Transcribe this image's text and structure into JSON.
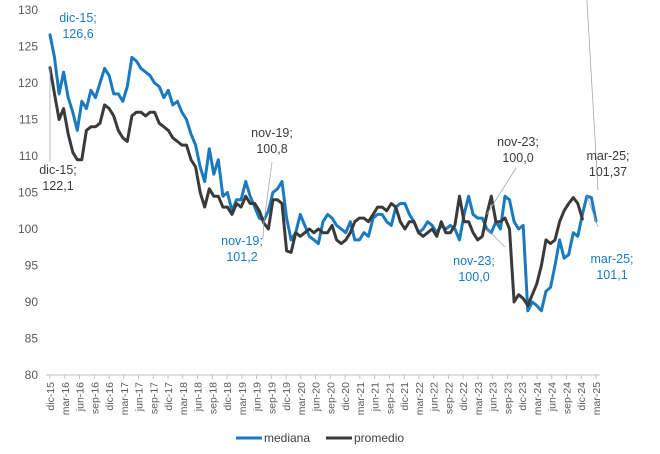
{
  "chart_data": {
    "type": "line",
    "title": "",
    "xlabel": "",
    "ylabel": "",
    "ylim": [
      80,
      130
    ],
    "yticks": [
      "80",
      "85",
      "90",
      "95",
      "100",
      "105",
      "110",
      "115",
      "120",
      "125",
      "130"
    ],
    "grid": false,
    "legend_position": "bottom",
    "x_tick_labels": [
      "dic-15",
      "mar-16",
      "jun-16",
      "sep-16",
      "dic-16",
      "mar-17",
      "jun-17",
      "sep-17",
      "dic-17",
      "mar-18",
      "jun-18",
      "sep-18",
      "dic-18",
      "mar-19",
      "jun-19",
      "sep-19",
      "dic-19",
      "mar-20",
      "jun-20",
      "sep-20",
      "dic-20",
      "mar-21",
      "jun-21",
      "sep-21",
      "dic-21",
      "mar-22",
      "jun-22",
      "sep-22",
      "dic-22",
      "mar-23",
      "jun-23",
      "sep-23",
      "dic-23",
      "mar-24",
      "jun-24",
      "sep-24",
      "dic-24",
      "mar-25"
    ],
    "series": [
      {
        "name": "mediana",
        "color": "#1a7abf",
        "values": [
          126.6,
          123.5,
          118.5,
          121.5,
          118,
          116,
          113.5,
          117.5,
          116.5,
          119,
          118,
          120,
          122,
          121,
          118.5,
          118.5,
          117.5,
          119.5,
          123.5,
          123,
          122,
          121.5,
          121,
          120,
          119.5,
          118,
          119,
          117,
          117.5,
          116,
          115,
          113,
          111.5,
          108.5,
          106.5,
          111,
          107.5,
          109.5,
          104.5,
          105,
          102.5,
          104,
          104,
          106.5,
          104.5,
          103,
          101.5,
          101.2,
          102.5,
          105,
          105.5,
          106.5,
          101.5,
          98.5,
          99.5,
          102,
          100.5,
          99,
          98.5,
          98,
          101,
          102,
          101.5,
          100.5,
          100,
          99.5,
          101,
          98.5,
          98.5,
          99.5,
          99,
          101.5,
          102,
          102,
          101,
          100.5,
          103,
          103.5,
          103.5,
          102,
          101,
          99.5,
          100,
          101,
          100.5,
          99.5,
          100.5,
          100,
          100.5,
          100,
          98.5,
          102,
          104.5,
          102,
          101.5,
          101.5,
          100,
          99.5,
          101,
          100,
          104.5,
          104,
          101,
          100,
          100.5,
          88.8,
          90,
          89.5,
          88.8,
          91.5,
          92,
          95,
          98.5,
          96,
          96.5,
          99.5,
          99,
          102,
          104.5,
          104.3,
          101.1
        ]
      },
      {
        "name": "promedio",
        "color": "#3a3a3a",
        "values": [
          122.1,
          118.5,
          115,
          116.5,
          113,
          110.5,
          109.5,
          109.5,
          113.5,
          114,
          114,
          114.5,
          117,
          116.5,
          115.5,
          113.5,
          112.5,
          112,
          115.5,
          116,
          116,
          115.5,
          116,
          116,
          114.5,
          114,
          113.5,
          112.5,
          112,
          111.5,
          111.5,
          109.5,
          108.5,
          105,
          103,
          105.5,
          104.5,
          104.5,
          103,
          103,
          102,
          103.5,
          103,
          104.5,
          103.5,
          103.5,
          102.5,
          100.8,
          100,
          104,
          104,
          103.5,
          97,
          96.8,
          99.5,
          99,
          99.5,
          100,
          99.5,
          100,
          99.5,
          99.5,
          100.5,
          98.5,
          98,
          98.5,
          99.5,
          101,
          101.5,
          101.5,
          101,
          102,
          103,
          103,
          102.5,
          103.5,
          103,
          101,
          100,
          101,
          101,
          99.5,
          99,
          99.5,
          100,
          99,
          101,
          99.5,
          99.5,
          100.5,
          104.5,
          101,
          101,
          99.5,
          98.5,
          99,
          102,
          104.5,
          101,
          101,
          101.5,
          100,
          90,
          91,
          90.5,
          89.5,
          91,
          92.5,
          95,
          98.5,
          98,
          98.5,
          101,
          102.5,
          103.5,
          104.3,
          103.5,
          101.37
        ]
      }
    ],
    "annotations": [
      {
        "text": "dic-15;",
        "text2": "126,6",
        "series": "mediana"
      },
      {
        "text": "dic-15;",
        "text2": "122,1",
        "series": "promedio"
      },
      {
        "text": "nov-19;",
        "text2": "100,8",
        "series": "promedio"
      },
      {
        "text": "nov-19;",
        "text2": "101,2",
        "series": "mediana"
      },
      {
        "text": "nov-23;",
        "text2": "100,0",
        "series": "promedio"
      },
      {
        "text": "nov-23;",
        "text2": "100,0",
        "series": "mediana"
      },
      {
        "text": "mar-25;",
        "text2": "101,37",
        "series": "promedio"
      },
      {
        "text": "mar-25;",
        "text2": "101,1",
        "series": "mediana"
      }
    ]
  }
}
